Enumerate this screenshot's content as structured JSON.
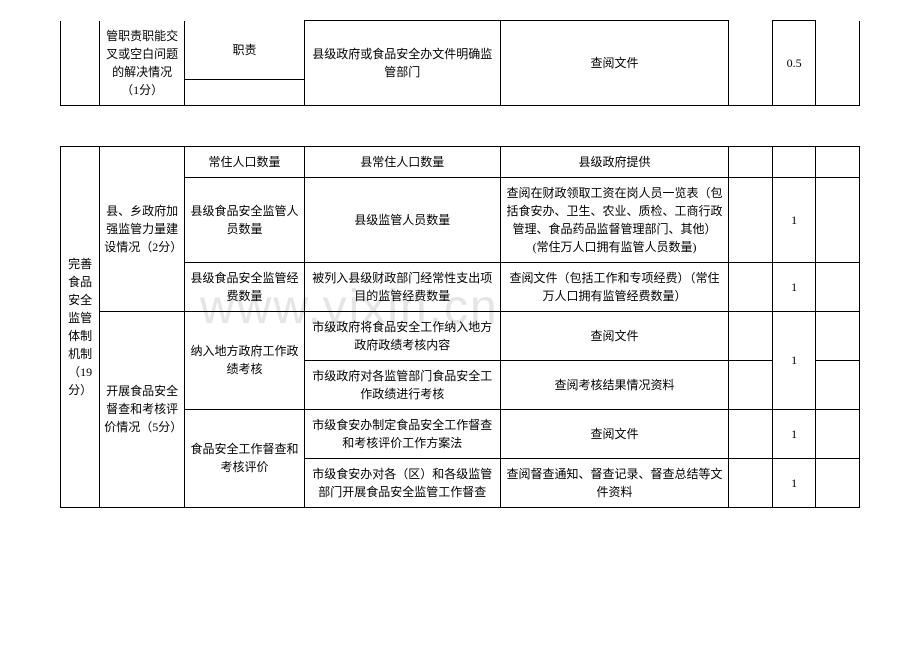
{
  "watermark": "www.yixin.cn",
  "table1": {
    "r1": {
      "c2": "管职责职能交叉或空白问题的解决情况（1分）",
      "c3": "职责",
      "c4": "县级政府或食品安全办文件明确监管部门",
      "c5": "查阅文件",
      "c7": "0.5"
    }
  },
  "table2": {
    "sideTitle": "完善食品安全监管体制机制（19分）",
    "group1": {
      "title": "县、乡政府加强监管力量建设情况（2分）",
      "r1": {
        "c3": "常住人口数量",
        "c4": "县常住人口数量",
        "c5": "县级政府提供",
        "c7": ""
      },
      "r2": {
        "c3": "县级食品安全监管人员数量",
        "c4": "县级监管人员数量",
        "c5": "查阅在财政领取工资在岗人员一览表（包括食安办、卫生、农业、质检、工商行政管理、食品药品监督管理部门、其他）(常住万人口拥有监管人员数量)",
        "c7": "1"
      },
      "r3": {
        "c3": "县级食品安全监管经费数量",
        "c4": "被列入县级财政部门经常性支出项目的监管经费数量",
        "c5": "查阅文件（包括工作和专项经费）（常住万人口拥有监管经费数量）",
        "c7": "1"
      }
    },
    "group2": {
      "title": "开展食品安全督查和考核评价情况（5分）",
      "sub1": {
        "c3": "纳入地方政府工作政绩考核",
        "r1": {
          "c4": "市级政府将食品安全工作纳入地方政府政绩考核内容",
          "c5": "查阅文件",
          "c7": "1"
        },
        "r2": {
          "c4": "市级政府对各监管部门食品安全工作政绩进行考核",
          "c5": "查阅考核结果情况资料",
          "c7": ""
        }
      },
      "sub2": {
        "c3": "食品安全工作督查和考核评价",
        "r1": {
          "c4": "市级食安办制定食品安全工作督查和考核评价工作方案法",
          "c5": "查阅文件",
          "c7": "1"
        },
        "r2": {
          "c4": "市级食安办对各（区）和各级监管部门开展食品安全监管工作督查",
          "c5": "查阅督查通知、督查记录、督查总结等文件资料",
          "c7": "1"
        }
      }
    }
  }
}
